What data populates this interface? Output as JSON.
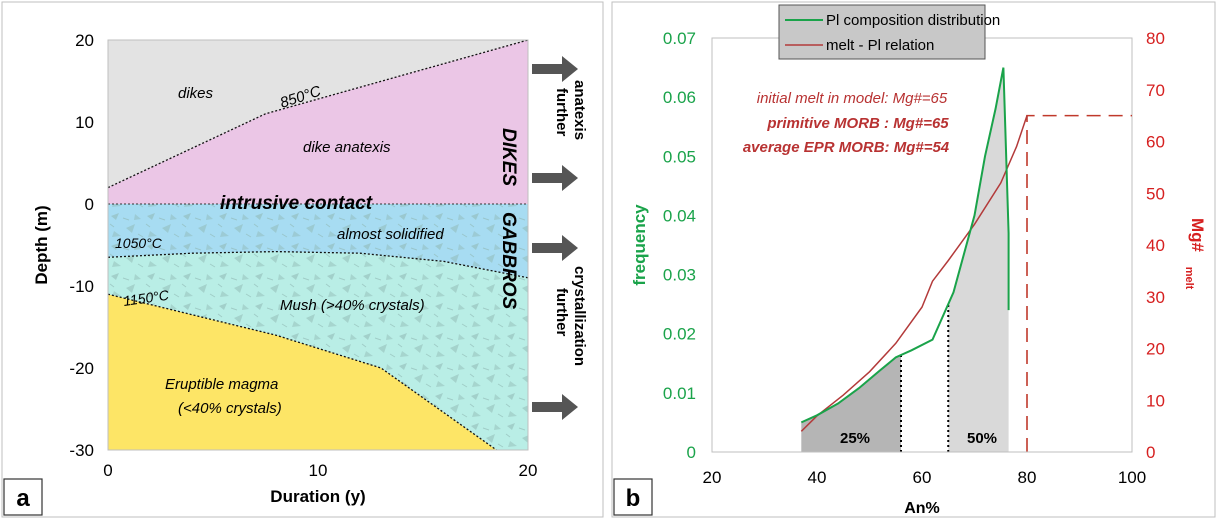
{
  "chart_data": [
    {
      "type": "area",
      "panel_label": "a",
      "xlabel": "Duration (y)",
      "ylabel": "Depth (m)",
      "xlim": [
        0,
        20
      ],
      "ylim": [
        -30,
        20
      ],
      "x_ticks": [
        "0",
        "10",
        "20"
      ],
      "y_ticks": [
        "20",
        "10",
        "0",
        "-10",
        "-20",
        "-30"
      ],
      "regions": {
        "dikes": {
          "label": "dikes",
          "color": "#e3e3e3"
        },
        "anatexis": {
          "label": "dike anatexis",
          "color": "#ebc6e6"
        },
        "solidified": {
          "label": "almost solidified",
          "color": "#a7dcf2"
        },
        "mush": {
          "label": "Mush (>40% crystals)",
          "color": "#b9eee6"
        },
        "eruptible": {
          "label_line1": "Eruptible magma",
          "label_line2": "(<40% crystals)",
          "color": "#fde566"
        }
      },
      "isotherms": [
        {
          "label": "850°C",
          "x": [
            0,
            7.5,
            20
          ],
          "y": [
            2,
            11,
            20
          ]
        },
        {
          "label": "1050°C",
          "x": [
            0,
            4,
            8,
            12,
            16,
            20
          ],
          "y": [
            -6.5,
            -6,
            -5.8,
            -6,
            -7,
            -9
          ]
        },
        {
          "label": "1150°C",
          "x": [
            0,
            8,
            13,
            18.5
          ],
          "y": [
            -11,
            -16,
            -20,
            -30
          ]
        }
      ],
      "contact": {
        "label": "intrusive contact",
        "depth": 0
      },
      "side_labels": {
        "top": "DIKES",
        "bottom": "GABBROS"
      },
      "arrow_annotations": [
        {
          "line1": "further",
          "line2": "anatexis"
        },
        {
          "line1": "further",
          "line2": "crystallization"
        }
      ]
    },
    {
      "type": "line",
      "panel_label": "b",
      "xlabel": "An%",
      "ylabel": "frequency",
      "ylabel_right": "Mg#",
      "ylabel_right_sub": "melt",
      "xlim": [
        20,
        100
      ],
      "ylim": [
        0,
        0.07
      ],
      "ylim_right": [
        0,
        80
      ],
      "x_ticks": [
        "20",
        "40",
        "60",
        "80",
        "100"
      ],
      "y_ticks": [
        "0",
        "0.01",
        "0.02",
        "0.03",
        "0.04",
        "0.05",
        "0.06",
        "0.07"
      ],
      "y_ticks_right": [
        "0",
        "10",
        "20",
        "30",
        "40",
        "50",
        "60",
        "70",
        "80"
      ],
      "legend": {
        "placement": "top-center",
        "entries": [
          "Pl composition distribution",
          "melt - Pl relation"
        ]
      },
      "series": [
        {
          "name": "Pl composition distribution",
          "axis": "left",
          "color": "#1aa34a",
          "x": [
            37,
            40,
            44,
            48,
            52,
            55,
            58,
            62,
            66,
            70,
            72,
            74,
            75.5,
            76.5,
            76.5
          ],
          "y": [
            0.005,
            0.0062,
            0.0082,
            0.0108,
            0.0138,
            0.016,
            0.0172,
            0.019,
            0.027,
            0.04,
            0.05,
            0.058,
            0.065,
            0.037,
            0.024
          ]
        },
        {
          "name": "melt - Pl relation",
          "axis": "right",
          "color": "#b33a3a",
          "x": [
            37,
            40,
            45,
            50,
            55,
            60,
            62,
            65,
            70,
            75,
            78,
            80
          ],
          "y": [
            4,
            7,
            11,
            15.5,
            21,
            28,
            33,
            37,
            44,
            52,
            59,
            65
          ]
        }
      ],
      "shaded_regions": [
        {
          "label": "25%",
          "x_start": 37,
          "x_end": 56,
          "color": "#b5b5b5"
        },
        {
          "label": "",
          "x_start": 56,
          "x_end": 65,
          "color": "#ffffff"
        },
        {
          "label": "50%",
          "x_start": 65,
          "x_end": 76.5,
          "color": "#d9d9d9"
        }
      ],
      "dotted_verticals": [
        56,
        65
      ],
      "dashed_reference": {
        "x": 80,
        "mg": 65,
        "color": "#c0392b"
      },
      "annotations": [
        "initial melt in model: Mg#=65",
        "primitive MORB   : Mg#=65",
        "average EPR MORB: Mg#=54"
      ]
    }
  ]
}
